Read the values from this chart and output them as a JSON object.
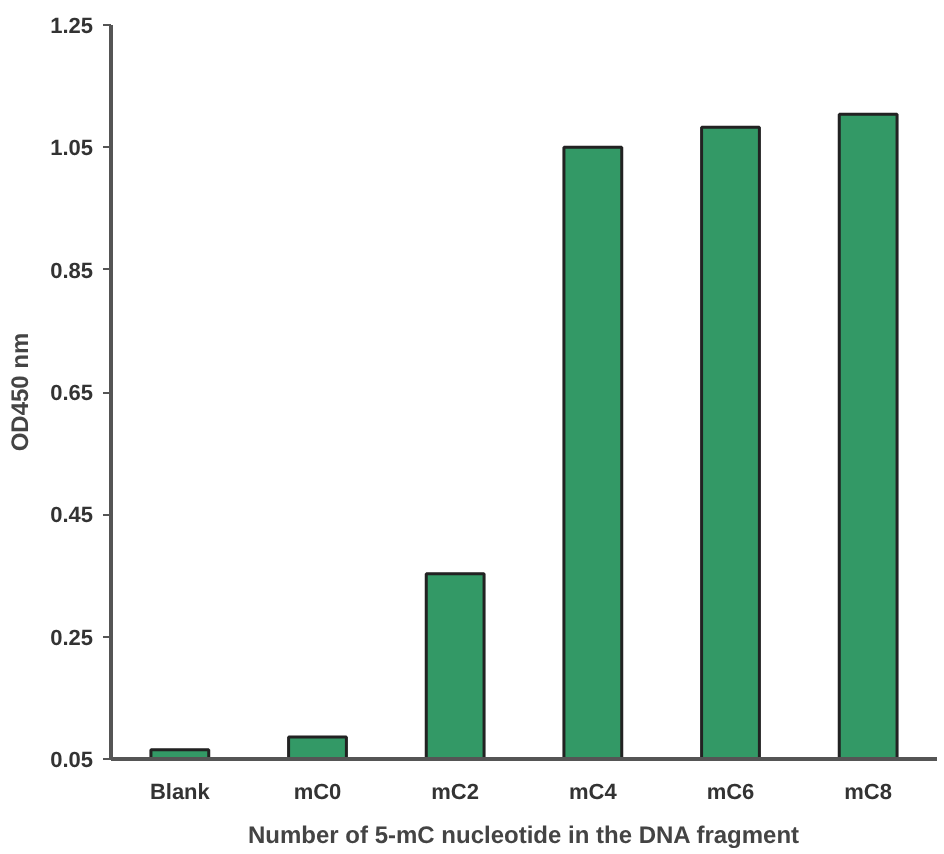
{
  "chart_data": {
    "type": "bar",
    "xlabel": "Number of 5-mC nucleotide in the DNA fragment",
    "ylabel": "OD450 nm",
    "categories": [
      "Blank",
      "mC0",
      "mC2",
      "mC4",
      "mC6",
      "mC8"
    ],
    "values": [
      0.065,
      0.086,
      0.353,
      1.05,
      1.083,
      1.104
    ],
    "color": "#339966",
    "ylim": [
      0.05,
      1.25
    ],
    "yticks": [
      0.05,
      0.25,
      0.45,
      0.65,
      0.85,
      1.05,
      1.25
    ],
    "grid": false
  }
}
